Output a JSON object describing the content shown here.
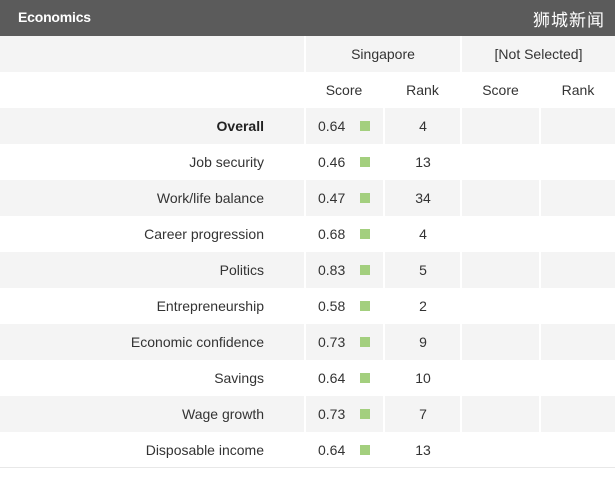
{
  "header": {
    "title": "Economics",
    "watermark": "狮城新闻"
  },
  "table": {
    "country_headers": [
      "Singapore",
      "[Not Selected]"
    ],
    "sub_headers": [
      "Score",
      "Rank",
      "Score",
      "Rank"
    ],
    "rows": [
      {
        "label": "Overall",
        "score": "0.64",
        "rank": "4",
        "bold": true
      },
      {
        "label": "Job security",
        "score": "0.46",
        "rank": "13"
      },
      {
        "label": "Work/life balance",
        "score": "0.47",
        "rank": "34"
      },
      {
        "label": "Career progression",
        "score": "0.68",
        "rank": "4"
      },
      {
        "label": "Politics",
        "score": "0.83",
        "rank": "5"
      },
      {
        "label": "Entrepreneurship",
        "score": "0.58",
        "rank": "2"
      },
      {
        "label": "Economic confidence",
        "score": "0.73",
        "rank": "9"
      },
      {
        "label": "Savings",
        "score": "0.64",
        "rank": "10"
      },
      {
        "label": "Wage growth",
        "score": "0.73",
        "rank": "7"
      },
      {
        "label": "Disposable income",
        "score": "0.64",
        "rank": "13"
      }
    ],
    "indicator_color": "#a3cf7e"
  }
}
